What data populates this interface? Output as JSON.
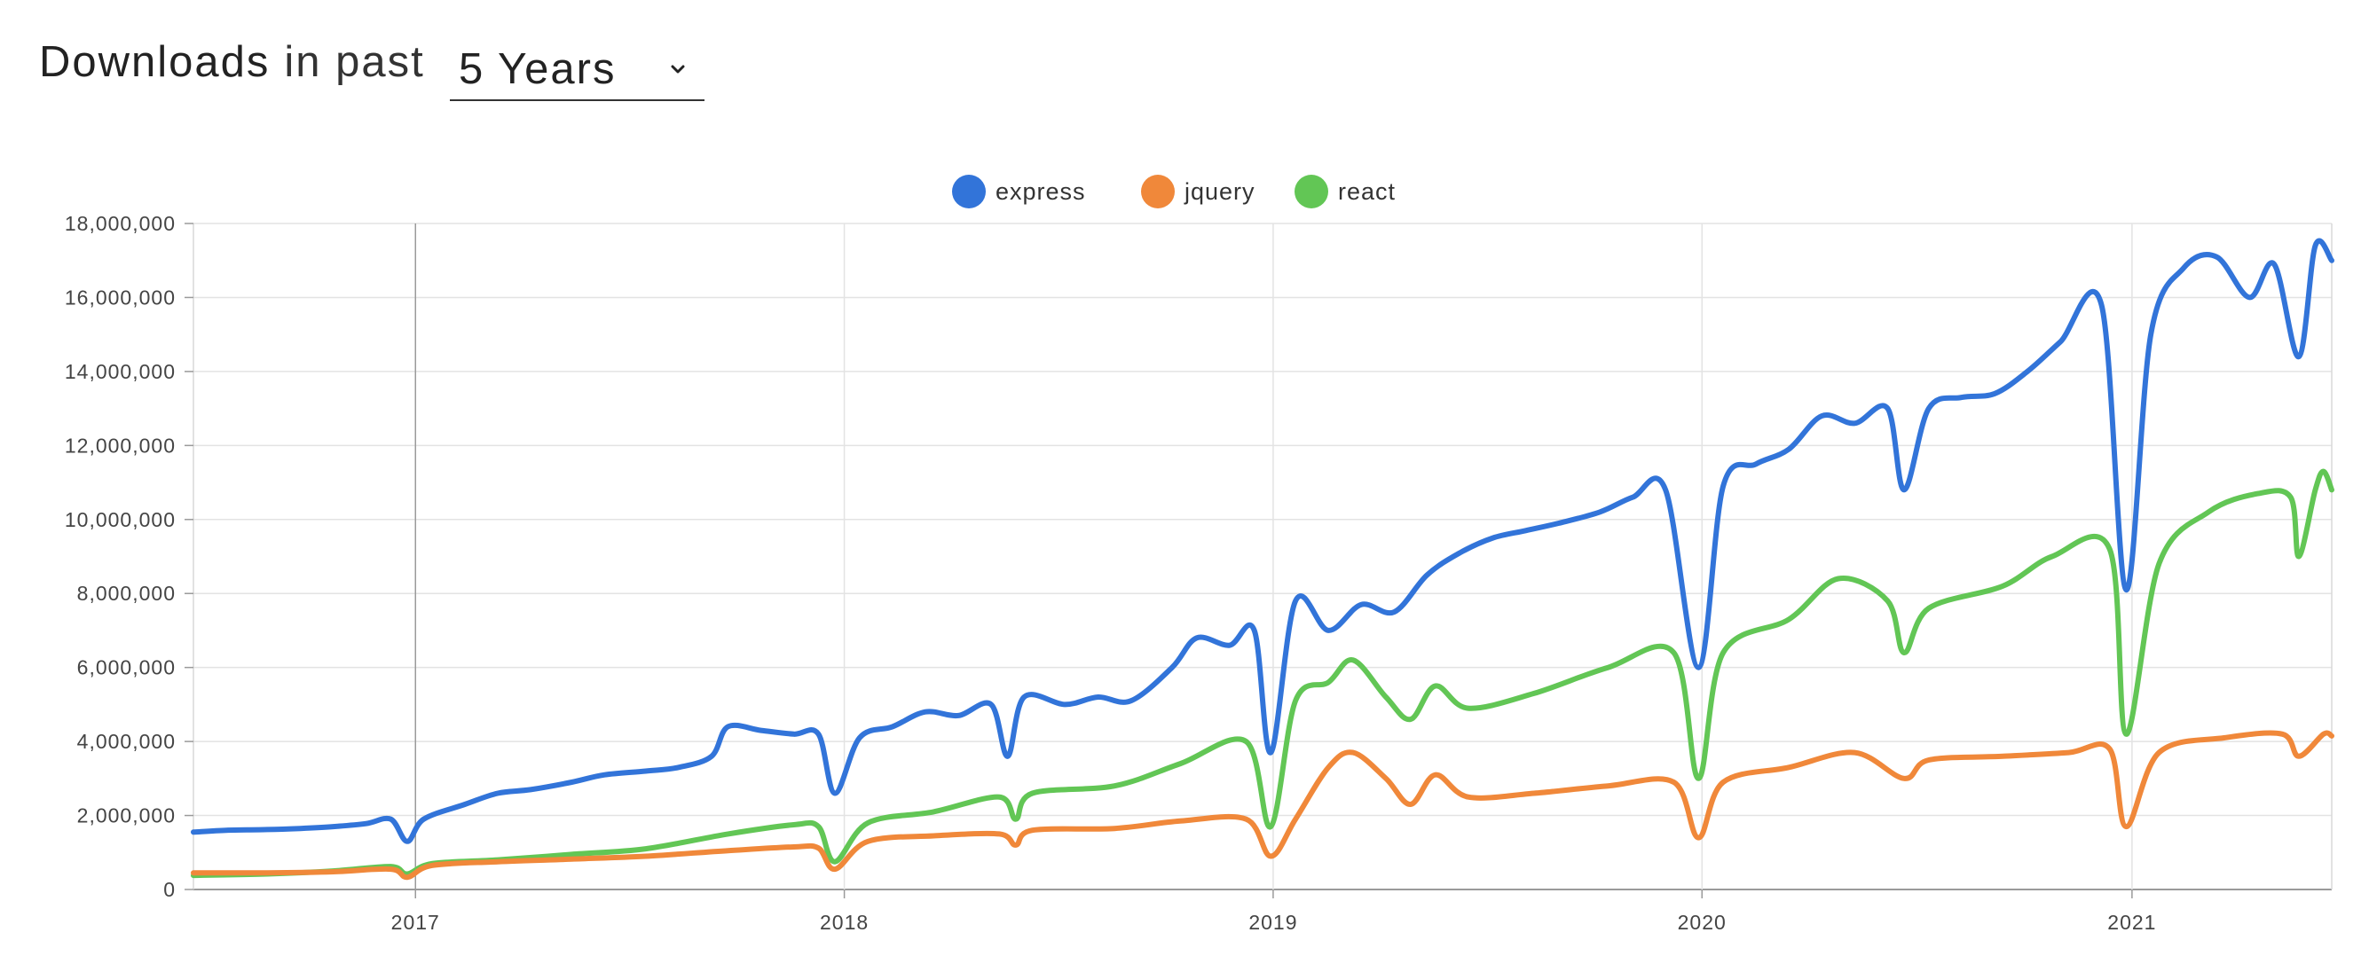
{
  "header": {
    "title_strong": "Downloads",
    "title_light": "in past",
    "period_selected": "5 Years"
  },
  "icons": {
    "dropdown": "chevron-down-icon"
  },
  "chart_data": {
    "type": "line",
    "title": "",
    "xlabel": "",
    "ylabel": "",
    "x_range": [
      "2016-06-26",
      "2021-06-20"
    ],
    "ylim": [
      0,
      18000000
    ],
    "y_ticks": [
      0,
      2000000,
      4000000,
      6000000,
      8000000,
      10000000,
      12000000,
      14000000,
      16000000,
      18000000
    ],
    "y_tick_labels": [
      "0",
      "2,000,000",
      "4,000,000",
      "6,000,000",
      "8,000,000",
      "10,000,000",
      "12,000,000",
      "14,000,000",
      "16,000,000",
      "18,000,000"
    ],
    "x_ticks": [
      "2017-01-01",
      "2018-01-01",
      "2019-01-01",
      "2020-01-01",
      "2021-01-01"
    ],
    "x_tick_labels": [
      "2017",
      "2018",
      "2019",
      "2020",
      "2021"
    ],
    "grid": true,
    "legend_position": "top-center",
    "series": [
      {
        "name": "express",
        "color": "#3274d9",
        "points": [
          [
            "2016-06-26",
            1550000
          ],
          [
            "2016-07-24",
            1600000
          ],
          [
            "2016-08-28",
            1620000
          ],
          [
            "2016-09-25",
            1650000
          ],
          [
            "2016-10-23",
            1700000
          ],
          [
            "2016-11-20",
            1780000
          ],
          [
            "2016-12-11",
            1900000
          ],
          [
            "2016-12-25",
            1300000
          ],
          [
            "2017-01-08",
            1900000
          ],
          [
            "2017-02-12",
            2300000
          ],
          [
            "2017-03-12",
            2600000
          ],
          [
            "2017-04-09",
            2700000
          ],
          [
            "2017-05-14",
            2900000
          ],
          [
            "2017-06-11",
            3100000
          ],
          [
            "2017-07-16",
            3200000
          ],
          [
            "2017-08-13",
            3300000
          ],
          [
            "2017-09-10",
            3600000
          ],
          [
            "2017-09-24",
            4400000
          ],
          [
            "2017-10-22",
            4300000
          ],
          [
            "2017-11-19",
            4200000
          ],
          [
            "2017-12-10",
            4200000
          ],
          [
            "2017-12-24",
            2600000
          ],
          [
            "2018-01-14",
            4100000
          ],
          [
            "2018-02-11",
            4400000
          ],
          [
            "2018-03-11",
            4800000
          ],
          [
            "2018-04-08",
            4700000
          ],
          [
            "2018-05-06",
            5000000
          ],
          [
            "2018-05-20",
            3600000
          ],
          [
            "2018-06-03",
            5200000
          ],
          [
            "2018-07-08",
            5000000
          ],
          [
            "2018-08-05",
            5200000
          ],
          [
            "2018-09-02",
            5100000
          ],
          [
            "2018-10-07",
            6000000
          ],
          [
            "2018-10-28",
            6800000
          ],
          [
            "2018-11-25",
            6600000
          ],
          [
            "2018-12-16",
            7000000
          ],
          [
            "2018-12-30",
            3700000
          ],
          [
            "2019-01-20",
            7800000
          ],
          [
            "2019-02-17",
            7000000
          ],
          [
            "2019-03-17",
            7700000
          ],
          [
            "2019-04-14",
            7500000
          ],
          [
            "2019-05-12",
            8500000
          ],
          [
            "2019-06-09",
            9100000
          ],
          [
            "2019-07-07",
            9500000
          ],
          [
            "2019-08-04",
            9700000
          ],
          [
            "2019-09-01",
            9900000
          ],
          [
            "2019-10-06",
            10200000
          ],
          [
            "2019-11-03",
            10600000
          ],
          [
            "2019-12-01",
            10800000
          ],
          [
            "2019-12-29",
            6000000
          ],
          [
            "2020-01-19",
            10900000
          ],
          [
            "2020-02-16",
            11500000
          ],
          [
            "2020-03-15",
            11900000
          ],
          [
            "2020-04-12",
            12800000
          ],
          [
            "2020-05-10",
            12600000
          ],
          [
            "2020-06-07",
            13000000
          ],
          [
            "2020-06-21",
            10800000
          ],
          [
            "2020-07-12",
            13000000
          ],
          [
            "2020-08-09",
            13300000
          ],
          [
            "2020-09-06",
            13400000
          ],
          [
            "2020-10-04",
            14000000
          ],
          [
            "2020-11-01",
            14800000
          ],
          [
            "2020-12-06",
            15800000
          ],
          [
            "2020-12-27",
            8100000
          ],
          [
            "2021-01-17",
            15000000
          ],
          [
            "2021-02-14",
            16800000
          ],
          [
            "2021-03-14",
            17100000
          ],
          [
            "2021-04-11",
            16000000
          ],
          [
            "2021-05-02",
            16900000
          ],
          [
            "2021-05-23",
            14400000
          ],
          [
            "2021-06-06",
            17400000
          ],
          [
            "2021-06-20",
            17000000
          ]
        ]
      },
      {
        "name": "jquery",
        "color": "#f0883a",
        "points": [
          [
            "2016-06-26",
            450000
          ],
          [
            "2016-08-28",
            450000
          ],
          [
            "2016-10-23",
            480000
          ],
          [
            "2016-12-11",
            550000
          ],
          [
            "2016-12-25",
            330000
          ],
          [
            "2017-01-15",
            650000
          ],
          [
            "2017-03-12",
            750000
          ],
          [
            "2017-05-14",
            820000
          ],
          [
            "2017-07-16",
            900000
          ],
          [
            "2017-09-24",
            1050000
          ],
          [
            "2017-11-19",
            1150000
          ],
          [
            "2017-12-10",
            1120000
          ],
          [
            "2017-12-24",
            550000
          ],
          [
            "2018-01-21",
            1300000
          ],
          [
            "2018-03-18",
            1450000
          ],
          [
            "2018-05-13",
            1500000
          ],
          [
            "2018-05-27",
            1200000
          ],
          [
            "2018-06-10",
            1600000
          ],
          [
            "2018-08-19",
            1650000
          ],
          [
            "2018-10-14",
            1850000
          ],
          [
            "2018-12-09",
            1900000
          ],
          [
            "2018-12-30",
            900000
          ],
          [
            "2019-01-20",
            1900000
          ],
          [
            "2019-02-17",
            3300000
          ],
          [
            "2019-03-10",
            3700000
          ],
          [
            "2019-04-07",
            3000000
          ],
          [
            "2019-04-28",
            2300000
          ],
          [
            "2019-05-19",
            3100000
          ],
          [
            "2019-06-16",
            2500000
          ],
          [
            "2019-08-11",
            2600000
          ],
          [
            "2019-10-13",
            2800000
          ],
          [
            "2019-12-08",
            2900000
          ],
          [
            "2019-12-29",
            1400000
          ],
          [
            "2020-01-19",
            2900000
          ],
          [
            "2020-03-15",
            3300000
          ],
          [
            "2020-05-10",
            3700000
          ],
          [
            "2020-06-21",
            3000000
          ],
          [
            "2020-07-12",
            3500000
          ],
          [
            "2020-09-13",
            3600000
          ],
          [
            "2020-11-08",
            3700000
          ],
          [
            "2020-12-13",
            3800000
          ],
          [
            "2020-12-27",
            1700000
          ],
          [
            "2021-01-24",
            3700000
          ],
          [
            "2021-03-21",
            4100000
          ],
          [
            "2021-05-09",
            4200000
          ],
          [
            "2021-05-23",
            3600000
          ],
          [
            "2021-06-13",
            4200000
          ],
          [
            "2021-06-20",
            4150000
          ]
        ]
      },
      {
        "name": "react",
        "color": "#62c655",
        "points": [
          [
            "2016-06-26",
            380000
          ],
          [
            "2016-08-28",
            420000
          ],
          [
            "2016-10-23",
            500000
          ],
          [
            "2016-12-11",
            620000
          ],
          [
            "2016-12-25",
            420000
          ],
          [
            "2017-01-15",
            700000
          ],
          [
            "2017-03-12",
            800000
          ],
          [
            "2017-05-14",
            950000
          ],
          [
            "2017-07-16",
            1100000
          ],
          [
            "2017-09-24",
            1500000
          ],
          [
            "2017-11-19",
            1750000
          ],
          [
            "2017-12-10",
            1700000
          ],
          [
            "2017-12-24",
            750000
          ],
          [
            "2018-01-21",
            1800000
          ],
          [
            "2018-03-18",
            2100000
          ],
          [
            "2018-05-13",
            2500000
          ],
          [
            "2018-05-27",
            1900000
          ],
          [
            "2018-06-10",
            2600000
          ],
          [
            "2018-08-19",
            2800000
          ],
          [
            "2018-10-14",
            3400000
          ],
          [
            "2018-12-09",
            4000000
          ],
          [
            "2018-12-30",
            1700000
          ],
          [
            "2019-01-20",
            5100000
          ],
          [
            "2019-02-17",
            5600000
          ],
          [
            "2019-03-10",
            6200000
          ],
          [
            "2019-04-07",
            5200000
          ],
          [
            "2019-04-28",
            4600000
          ],
          [
            "2019-05-19",
            5500000
          ],
          [
            "2019-06-16",
            4900000
          ],
          [
            "2019-08-11",
            5300000
          ],
          [
            "2019-10-13",
            6000000
          ],
          [
            "2019-12-08",
            6400000
          ],
          [
            "2019-12-29",
            3000000
          ],
          [
            "2020-01-19",
            6400000
          ],
          [
            "2020-03-15",
            7300000
          ],
          [
            "2020-04-26",
            8400000
          ],
          [
            "2020-06-07",
            7800000
          ],
          [
            "2020-06-21",
            6400000
          ],
          [
            "2020-07-12",
            7600000
          ],
          [
            "2020-09-13",
            8200000
          ],
          [
            "2020-10-25",
            9000000
          ],
          [
            "2020-12-13",
            9200000
          ],
          [
            "2020-12-27",
            4200000
          ],
          [
            "2021-01-24",
            8800000
          ],
          [
            "2021-03-07",
            10200000
          ],
          [
            "2021-04-18",
            10700000
          ],
          [
            "2021-05-16",
            10600000
          ],
          [
            "2021-05-23",
            9000000
          ],
          [
            "2021-06-06",
            10800000
          ],
          [
            "2021-06-13",
            11300000
          ],
          [
            "2021-06-20",
            10800000
          ]
        ]
      }
    ]
  }
}
